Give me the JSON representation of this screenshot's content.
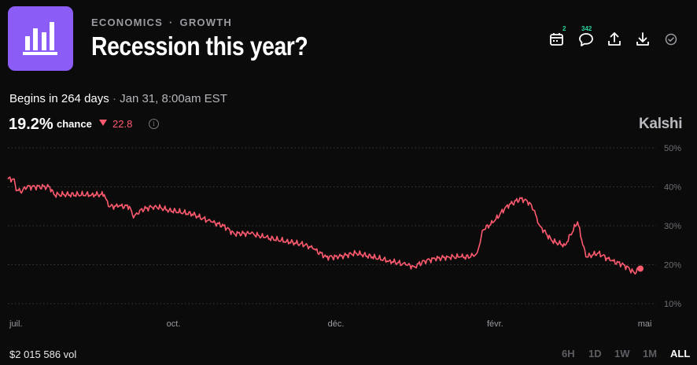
{
  "header": {
    "category": "ECONOMICS",
    "subcategory": "GROWTH",
    "separator": "·",
    "title": "Recession this year?",
    "app_icon": "bar-chart-icon",
    "accent_color": "#8b5cf6"
  },
  "toolbar": [
    {
      "name": "calendar-icon",
      "badge": "2"
    },
    {
      "name": "comment-icon",
      "badge": "342"
    },
    {
      "name": "share-icon",
      "badge": ""
    },
    {
      "name": "download-icon",
      "badge": ""
    },
    {
      "name": "check-circle-icon",
      "badge": ""
    }
  ],
  "market": {
    "begins_text": "Begins in 264 days",
    "separator": "·",
    "begins_date": "Jan 31, 8:00am EST",
    "chance_value": "19.2%",
    "chance_label": "chance",
    "delta": "22.8",
    "delta_direction": "down",
    "delta_color": "#ff5a6e",
    "brand": "Kalshi",
    "volume": "$2 015 586 vol"
  },
  "ranges": {
    "items": [
      "6H",
      "1D",
      "1W",
      "1M",
      "ALL"
    ],
    "active": "ALL"
  },
  "chart_data": {
    "type": "line",
    "series": [
      {
        "color": "#ff5a6e",
        "points": [
          [
            0,
            42
          ],
          [
            3,
            42
          ],
          [
            4,
            39
          ],
          [
            7,
            39
          ],
          [
            8,
            40
          ],
          [
            20,
            40
          ],
          [
            22,
            38
          ],
          [
            40,
            38
          ],
          [
            46,
            38
          ],
          [
            48,
            35
          ],
          [
            53,
            35
          ],
          [
            58,
            35
          ],
          [
            60,
            32
          ],
          [
            63,
            34
          ],
          [
            70,
            35
          ],
          [
            77,
            34
          ],
          [
            88,
            33
          ],
          [
            97,
            31
          ],
          [
            103,
            30
          ],
          [
            108,
            28
          ],
          [
            116,
            28
          ],
          [
            123,
            27
          ],
          [
            133,
            26
          ],
          [
            143,
            25
          ],
          [
            146,
            24
          ],
          [
            152,
            22
          ],
          [
            158,
            22
          ],
          [
            166,
            23
          ],
          [
            174,
            22
          ],
          [
            182,
            21
          ],
          [
            190,
            20
          ],
          [
            194,
            19.5
          ],
          [
            199,
            21
          ],
          [
            204,
            21.5
          ],
          [
            210,
            22
          ],
          [
            216,
            22
          ],
          [
            221,
            22
          ],
          [
            224,
            23
          ],
          [
            227,
            29
          ],
          [
            232,
            31
          ],
          [
            238,
            35
          ],
          [
            245,
            37
          ],
          [
            249,
            36
          ],
          [
            251,
            34
          ],
          [
            254,
            30
          ],
          [
            260,
            26
          ],
          [
            266,
            25
          ],
          [
            272,
            31
          ],
          [
            276,
            22
          ],
          [
            282,
            23
          ],
          [
            288,
            21
          ],
          [
            294,
            20
          ],
          [
            299,
            18
          ],
          [
            302,
            19
          ]
        ]
      }
    ],
    "x_ticks": [
      {
        "day": 0,
        "label": "juil."
      },
      {
        "day": 75,
        "label": "oct."
      },
      {
        "day": 152,
        "label": "déc."
      },
      {
        "day": 228,
        "label": "févr."
      },
      {
        "day": 300,
        "label": "mai"
      }
    ],
    "xlim": [
      0,
      308
    ],
    "y_ticks": [
      50,
      40,
      30,
      20,
      10
    ],
    "y_tick_suffix": "%",
    "ylim": [
      10,
      50
    ],
    "grid": true,
    "end_marker": true
  }
}
